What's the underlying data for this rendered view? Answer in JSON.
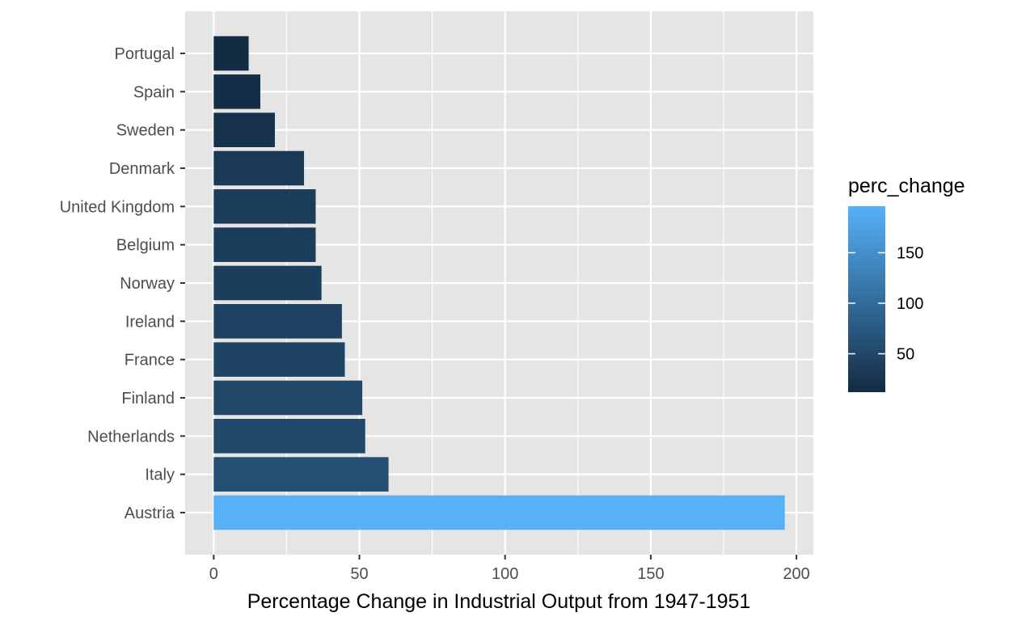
{
  "chart_data": {
    "type": "bar",
    "orientation": "horizontal",
    "categories": [
      "Austria",
      "Italy",
      "Netherlands",
      "Finland",
      "France",
      "Ireland",
      "Norway",
      "Belgium",
      "United Kingdom",
      "Denmark",
      "Sweden",
      "Spain",
      "Portugal"
    ],
    "values": [
      196,
      60,
      52,
      51,
      45,
      44,
      37,
      35,
      35,
      31,
      21,
      16,
      12
    ],
    "xlabel": "Percentage Change in Industrial Output from 1947-1951",
    "ylabel": "",
    "xlim": [
      -9.8,
      205.8
    ],
    "x_ticks": [
      0,
      50,
      100,
      150,
      200
    ],
    "grid": true,
    "legend": {
      "title": "perc_change",
      "placement": "right",
      "type": "colorbar",
      "range": [
        12,
        196
      ],
      "ticks": [
        50,
        100,
        150
      ],
      "color_low": "#132B43",
      "color_high": "#56B1F7"
    },
    "colors": {
      "panel_background": "#E5E5E5",
      "grid_major": "#FFFFFF"
    }
  }
}
